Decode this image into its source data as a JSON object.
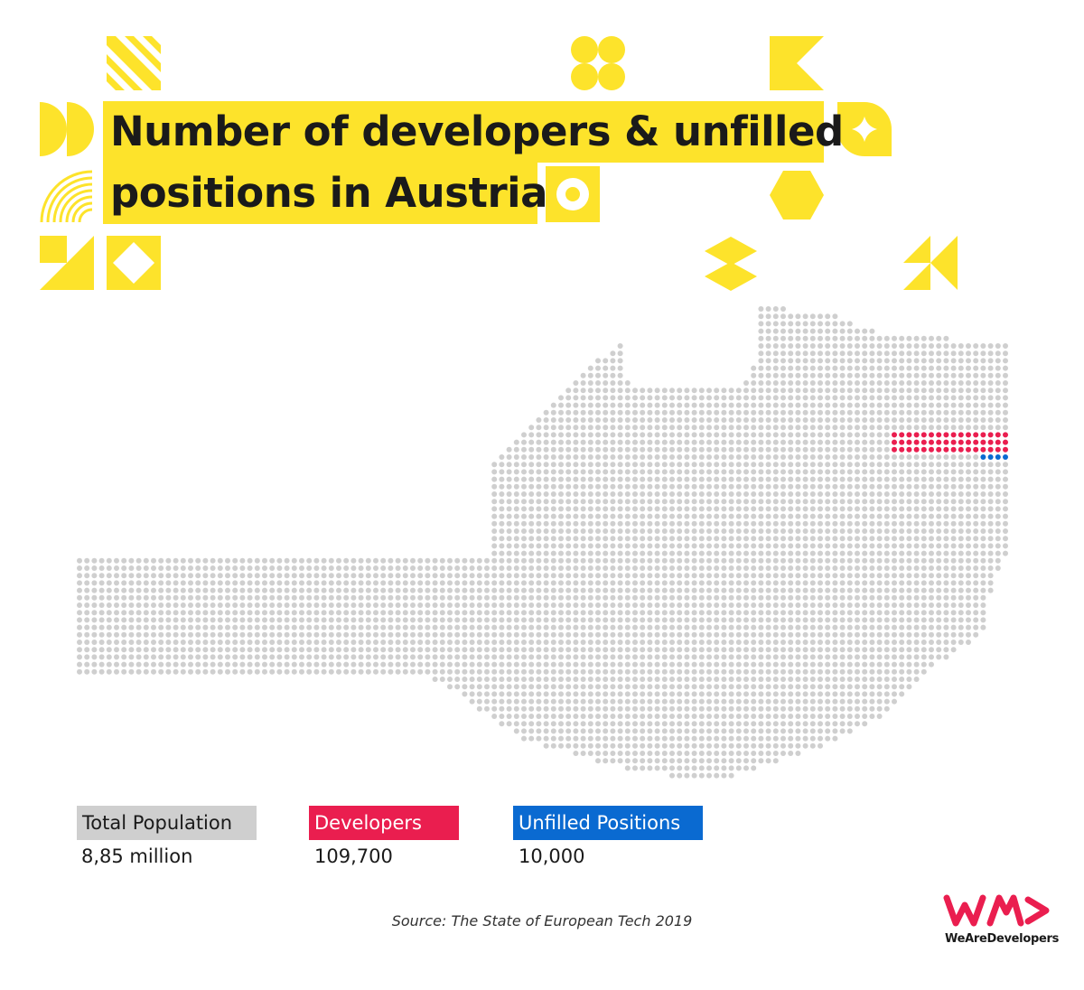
{
  "title": {
    "line1": "Number of developers & unfilled",
    "line2": "positions in Austria"
  },
  "colors": {
    "yellow": "#fde32b",
    "population": "#cfcfcf",
    "developers": "#ea1e4f",
    "unfilled": "#0a6ad1",
    "brand": "#ea1e4f"
  },
  "legend": {
    "total": {
      "label": "Total Population",
      "value": "8,85 million"
    },
    "developers": {
      "label": "Developers",
      "value": "109,700"
    },
    "unfilled": {
      "label": "Unfilled Positions",
      "value": "10,000"
    }
  },
  "source": "Source: The State of European Tech 2019",
  "brand": {
    "name": "WeAreDevelopers",
    "icon": "wearedevelopers-logo-icon"
  }
}
